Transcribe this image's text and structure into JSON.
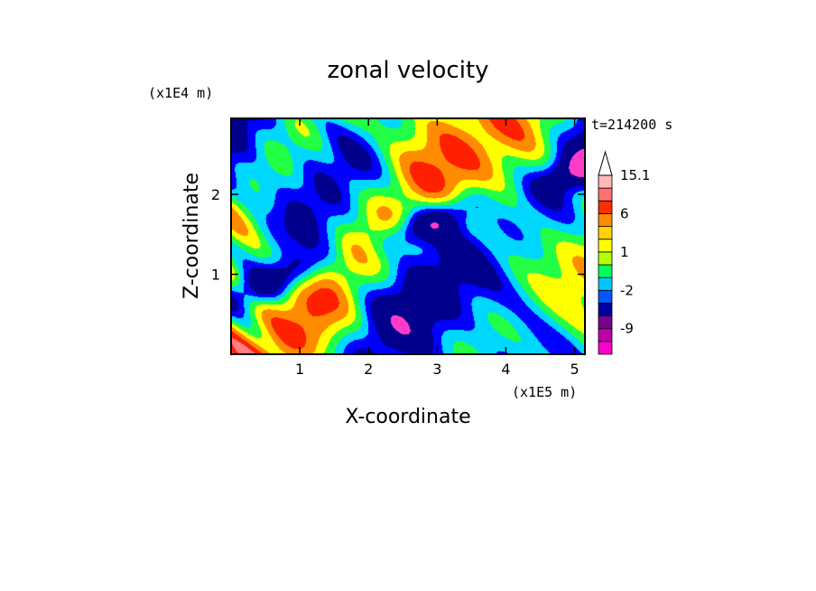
{
  "chart_data": {
    "type": "heatmap",
    "title": "zonal velocity",
    "xlabel": "X-coordinate",
    "ylabel": "Z-coordinate",
    "x_scale_label": "(x1E5 m)",
    "y_scale_label": "(x1E4 m)",
    "time_label": "t=214200 s",
    "xlim": [
      0,
      5.15
    ],
    "ylim": [
      0,
      2.95
    ],
    "x_ticks": [
      1,
      2,
      3,
      4,
      5
    ],
    "y_ticks": [
      1,
      2
    ],
    "colorbar": {
      "levels": [
        -15,
        -12,
        -9,
        -6,
        -3,
        -2,
        -1,
        0,
        1,
        2,
        3,
        6,
        9,
        12,
        15.1
      ],
      "colors": [
        "#ff00cc",
        "#c000a8",
        "#7a0090",
        "#00009c",
        "#0058ff",
        "#00c8ff",
        "#00ff60",
        "#b4ff00",
        "#ffff00",
        "#ffd400",
        "#ff8c00",
        "#ff3000",
        "#ff7070",
        "#ffb8b8"
      ],
      "extend_max": true,
      "tick_labels": [
        "15.1",
        "6",
        "1",
        "-2",
        "-9"
      ],
      "tick_values": [
        15.1,
        6,
        1,
        -2,
        -9
      ]
    },
    "grid": false,
    "palette": [
      "#ff3cc8",
      "#b000a0",
      "#00008c",
      "#0000ff",
      "#00d8ff",
      "#22ff44",
      "#ffff00",
      "#ff8c00",
      "#ff2000",
      "#ff8080"
    ]
  }
}
